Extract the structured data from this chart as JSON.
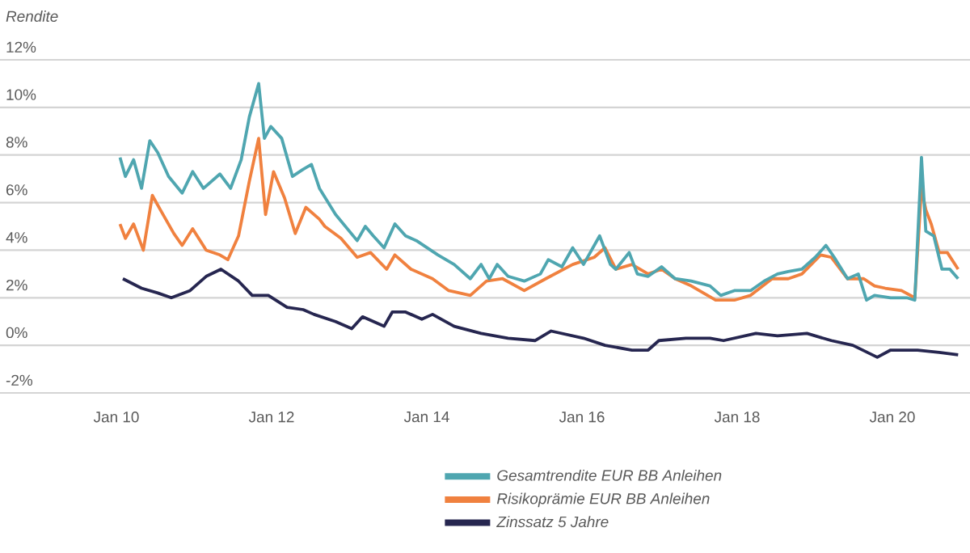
{
  "chart_data": {
    "type": "line",
    "ylabel": "Rendite",
    "xlim": [
      "2008-07",
      "2021-01"
    ],
    "xticks": [
      {
        "value": "2010-01",
        "label": "Jan 10"
      },
      {
        "value": "2012-01",
        "label": "Jan 12"
      },
      {
        "value": "2014-01",
        "label": "Jan 14"
      },
      {
        "value": "2016-01",
        "label": "Jan 16"
      },
      {
        "value": "2018-01",
        "label": "Jan 18"
      },
      {
        "value": "2020-01",
        "label": "Jan 20"
      }
    ],
    "ylim": [
      -2,
      12
    ],
    "yticks": [
      {
        "value": -2,
        "label": "-2%"
      },
      {
        "value": 0,
        "label": "0%"
      },
      {
        "value": 2,
        "label": "2%"
      },
      {
        "value": 4,
        "label": "4%"
      },
      {
        "value": 6,
        "label": "6%"
      },
      {
        "value": 8,
        "label": "8%"
      },
      {
        "value": 10,
        "label": "10%"
      },
      {
        "value": 12,
        "label": "12%"
      }
    ],
    "grid": "y",
    "legend": "bottom",
    "line_style": "solid",
    "series": [
      {
        "name": "Gesamtrendite EUR BB Anleihen",
        "color": "#4fa6b0",
        "x": [
          "2010-01-18",
          "2010-02-13",
          "2010-03-21",
          "2010-04-28",
          "2010-06-06",
          "2010-07-13",
          "2010-09-03",
          "2010-11-06",
          "2010-12-25",
          "2011-02-15",
          "2011-05-01",
          "2011-06-21",
          "2011-08-10",
          "2011-09-18",
          "2011-11-01",
          "2011-11-28",
          "2011-12-28",
          "2012-02-18",
          "2012-04-08",
          "2012-05-28",
          "2012-07-06",
          "2012-08-13",
          "2012-10-28",
          "2013-02-08",
          "2013-03-16",
          "2013-04-23",
          "2013-06-13",
          "2013-08-03",
          "2013-09-23",
          "2013-11-13",
          "2014-02-23",
          "2014-05-08",
          "2014-07-23",
          "2014-09-13",
          "2014-10-21",
          "2014-11-28",
          "2015-01-18",
          "2015-04-03",
          "2015-06-18",
          "2015-07-25",
          "2015-09-28",
          "2015-11-18",
          "2016-01-08",
          "2016-03-23",
          "2016-05-13",
          "2016-06-08",
          "2016-08-10",
          "2016-09-18",
          "2016-11-08",
          "2017-01-10",
          "2017-03-13",
          "2017-05-28",
          "2017-08-25",
          "2017-10-15",
          "2017-12-18",
          "2018-03-03",
          "2018-05-06",
          "2018-07-08",
          "2018-08-28",
          "2018-11-01",
          "2019-01-03",
          "2019-02-23",
          "2019-04-01",
          "2019-06-03",
          "2019-07-23",
          "2019-09-01",
          "2019-10-08",
          "2019-12-23",
          "2020-03-08",
          "2020-04-15",
          "2020-05-16",
          "2020-06-06",
          "2020-07-13",
          "2020-08-21",
          "2020-09-28",
          "2020-11-06"
        ],
        "values": [
          7.9,
          7.1,
          7.8,
          6.6,
          8.6,
          8.1,
          7.1,
          6.4,
          7.3,
          6.6,
          7.2,
          6.6,
          7.8,
          9.6,
          11.0,
          8.7,
          9.2,
          8.7,
          7.1,
          7.4,
          7.6,
          6.6,
          5.5,
          4.4,
          5.0,
          4.6,
          4.1,
          5.1,
          4.6,
          4.4,
          3.8,
          3.4,
          2.8,
          3.4,
          2.8,
          3.4,
          2.9,
          2.7,
          3.0,
          3.6,
          3.3,
          4.1,
          3.4,
          4.6,
          3.4,
          3.2,
          3.9,
          3.0,
          2.9,
          3.3,
          2.8,
          2.7,
          2.5,
          2.1,
          2.3,
          2.3,
          2.7,
          3.0,
          3.1,
          3.2,
          3.7,
          4.2,
          3.7,
          2.8,
          3.0,
          1.9,
          2.1,
          2.0,
          2.0,
          1.9,
          7.9,
          4.8,
          4.6,
          3.2,
          3.2,
          2.8
        ]
      },
      {
        "name": "Risikoprämie EUR BB Anleihen",
        "color": "#f0813f",
        "x": [
          "2010-01-18",
          "2010-02-13",
          "2010-03-21",
          "2010-05-06",
          "2010-06-18",
          "2010-07-25",
          "2010-09-28",
          "2010-11-06",
          "2010-12-25",
          "2011-02-28",
          "2011-05-01",
          "2011-06-08",
          "2011-07-28",
          "2011-09-18",
          "2011-11-01",
          "2011-12-03",
          "2012-01-10",
          "2012-03-01",
          "2012-04-21",
          "2012-06-10",
          "2012-08-13",
          "2012-09-08",
          "2012-11-23",
          "2013-02-08",
          "2013-04-10",
          "2013-06-25",
          "2013-08-03",
          "2013-10-18",
          "2014-01-28",
          "2014-04-13",
          "2014-07-23",
          "2014-10-08",
          "2014-12-23",
          "2015-04-03",
          "2015-07-13",
          "2015-11-18",
          "2016-02-28",
          "2016-04-18",
          "2016-06-08",
          "2016-08-23",
          "2016-11-08",
          "2017-01-10",
          "2017-03-13",
          "2017-05-28",
          "2017-09-21",
          "2017-12-18",
          "2018-03-03",
          "2018-06-13",
          "2018-08-28",
          "2018-11-01",
          "2019-01-28",
          "2019-03-18",
          "2019-06-03",
          "2019-08-18",
          "2019-10-08",
          "2019-11-28",
          "2020-02-13",
          "2020-04-15",
          "2020-05-16",
          "2020-06-06",
          "2020-07-01",
          "2020-08-08",
          "2020-09-16",
          "2020-11-06"
        ],
        "values": [
          5.1,
          4.5,
          5.1,
          4.0,
          6.3,
          5.7,
          4.7,
          4.2,
          4.9,
          4.0,
          3.8,
          3.6,
          4.6,
          6.9,
          8.7,
          5.5,
          7.3,
          6.2,
          4.7,
          5.8,
          5.3,
          5.0,
          4.5,
          3.7,
          3.9,
          3.2,
          3.8,
          3.2,
          2.8,
          2.3,
          2.1,
          2.7,
          2.8,
          2.3,
          2.8,
          3.4,
          3.7,
          4.1,
          3.2,
          3.4,
          3.0,
          3.2,
          2.8,
          2.5,
          1.9,
          1.9,
          2.1,
          2.8,
          2.8,
          3.0,
          3.8,
          3.7,
          2.8,
          2.8,
          2.5,
          2.4,
          2.3,
          2.0,
          6.6,
          5.7,
          5.1,
          3.9,
          3.9,
          3.2
        ]
      },
      {
        "name": "Zinssatz 5 Jahre",
        "color": "#262650",
        "x": [
          "2010-02-01",
          "2010-04-28",
          "2010-07-13",
          "2010-09-16",
          "2010-12-13",
          "2011-02-28",
          "2011-05-06",
          "2011-07-28",
          "2011-10-01",
          "2011-12-16",
          "2012-03-13",
          "2012-05-28",
          "2012-07-18",
          "2012-10-28",
          "2013-01-13",
          "2013-03-03",
          "2013-06-13",
          "2013-07-21",
          "2013-09-23",
          "2013-12-08",
          "2014-01-28",
          "2014-05-08",
          "2014-09-13",
          "2015-01-18",
          "2015-05-23",
          "2015-08-08",
          "2016-01-08",
          "2016-04-18",
          "2016-08-23",
          "2016-11-08",
          "2016-12-28",
          "2017-05-03",
          "2017-08-25",
          "2017-10-28",
          "2018-03-28",
          "2018-07-08",
          "2018-11-25",
          "2019-03-18",
          "2019-06-28",
          "2019-10-21",
          "2019-12-23",
          "2020-04-28",
          "2020-08-08",
          "2020-11-06"
        ],
        "values": [
          2.8,
          2.4,
          2.2,
          2.0,
          2.3,
          2.9,
          3.2,
          2.7,
          2.1,
          2.1,
          1.6,
          1.5,
          1.3,
          1.0,
          0.7,
          1.2,
          0.8,
          1.4,
          1.4,
          1.1,
          1.3,
          0.8,
          0.5,
          0.3,
          0.2,
          0.6,
          0.3,
          0.0,
          -0.2,
          -0.2,
          0.2,
          0.3,
          0.3,
          0.2,
          0.5,
          0.4,
          0.5,
          0.2,
          0.0,
          -0.5,
          -0.2,
          -0.2,
          -0.3,
          -0.4
        ]
      }
    ]
  }
}
